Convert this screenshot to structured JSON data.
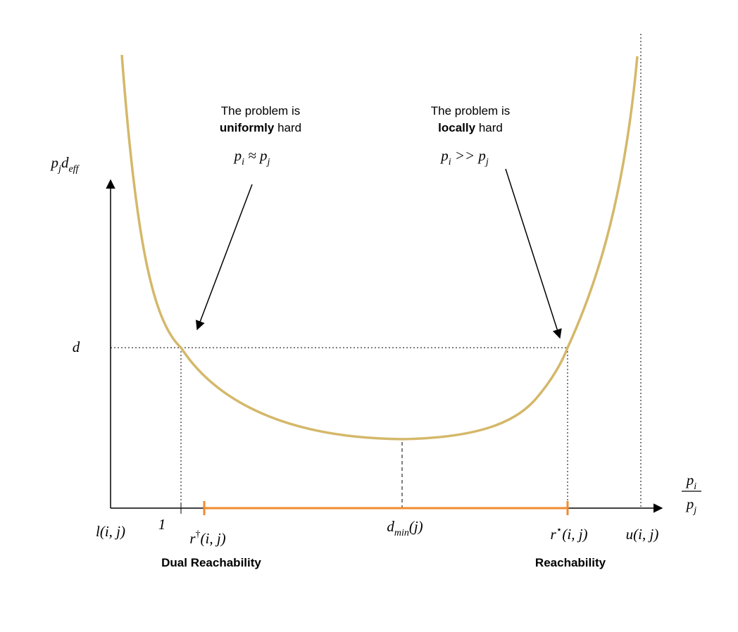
{
  "y_axis_label": [
    {
      "t": "p",
      "sub": "j"
    },
    {
      "t": "d",
      "sub": "eff"
    }
  ],
  "x_axis_label": {
    "numerator": [
      {
        "t": "p",
        "sub": "i"
      }
    ],
    "denominator": [
      {
        "t": "p",
        "sub": "j"
      }
    ]
  },
  "level_label": [
    {
      "t": "d"
    }
  ],
  "x_labels": [
    [
      {
        "t": "l(i, j)"
      }
    ],
    [
      {
        "t": "1"
      }
    ],
    [
      {
        "t": "r",
        "sup": "†"
      },
      {
        "t": "(i, j)"
      }
    ],
    [
      {
        "t": "d",
        "sub": "min"
      },
      {
        "t": "(j)"
      }
    ],
    [
      {
        "t": "r",
        "sup": "⋆"
      },
      {
        "t": "(i, j)"
      }
    ],
    [
      {
        "t": "u(i, j)"
      }
    ]
  ],
  "region_labels": [
    "Dual Reachability",
    "Reachability"
  ],
  "annotations": [
    {
      "line1": "The problem is",
      "bold": "uniformly",
      "rest": "hard",
      "formula": [
        {
          "t": "p",
          "sub": "i"
        },
        {
          "t": " ≈ "
        },
        {
          "t": "p",
          "sub": "j"
        }
      ]
    },
    {
      "line1": "The problem is",
      "bold": "locally",
      "rest": "hard",
      "formula": [
        {
          "t": "p",
          "sub": "i"
        },
        {
          "t": " >> "
        },
        {
          "t": "p",
          "sub": "j"
        }
      ]
    }
  ]
}
